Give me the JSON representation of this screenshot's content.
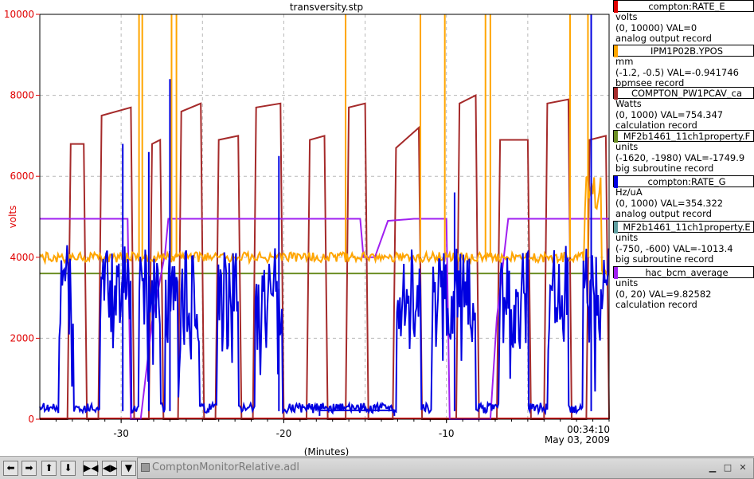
{
  "window": {
    "title": "transversity.stp",
    "taskbar_title": "ComptonMonitorRelative.adl"
  },
  "axes": {
    "y_label": "volts",
    "x_label": "(Minutes)",
    "time_label": "00:34:10",
    "date_label": "May 03, 2009",
    "y_ticks": [
      "0",
      "2000",
      "4000",
      "6000",
      "8000",
      "10000"
    ],
    "x_ticks": [
      "-30",
      "-20",
      "-10"
    ]
  },
  "legend": [
    {
      "name": "compton:RATE_E",
      "color": "#e00000",
      "units": "volts",
      "range": "(0, 10000)  VAL=0",
      "type": "analog output record"
    },
    {
      "name": "IPM1P02B.YPOS",
      "color": "#ffa500",
      "units": "mm",
      "range": "(-1.2, -0.5) VAL=-0.941746",
      "type": "bpmsee record"
    },
    {
      "name": "COMPTON_PW1PCAV_ca",
      "color": "#a52a2a",
      "units": "Watts",
      "range": "(0, 1000) VAL=754.347",
      "type": "calculation record"
    },
    {
      "name": "MF2b1461_11ch1property.F",
      "color": "#6b8e23",
      "units": "units",
      "range": "(-1620, -1980) VAL=-1749.9",
      "type": "big subroutine record"
    },
    {
      "name": "compton:RATE_G",
      "color": "#0000e0",
      "units": "Hz/uA",
      "range": "(0, 1000) VAL=354.322",
      "type": "analog output record"
    },
    {
      "name": "MF2b1461_11ch1property.E",
      "color": "#5f9ea0",
      "units": "units",
      "range": "(-750, -600) VAL=-1013.4",
      "type": "big subroutine record"
    },
    {
      "name": "hac_bcm_average",
      "color": "#a020f0",
      "units": "units",
      "range": "(0, 20) VAL=9.82582",
      "type": "calculation record"
    }
  ],
  "chart_data": {
    "type": "line",
    "title": "transversity.stp",
    "xlabel": "(Minutes)",
    "ylabel": "volts",
    "xlim": [
      -35,
      0
    ],
    "ylim": [
      0,
      10000
    ],
    "grid": true,
    "series": [
      {
        "name": "compton:RATE_E",
        "color": "#e00000",
        "x": [
          -35,
          0
        ],
        "y": [
          20,
          20
        ]
      },
      {
        "name": "MF2b1461_11ch1property.F",
        "color": "#6b8e23",
        "x": [
          -35,
          0
        ],
        "y": [
          3600,
          3600
        ]
      },
      {
        "name": "COMPTON_PW1PCAV_ca",
        "color": "#a52a2a",
        "x": [
          -35,
          -33.3,
          -33.1,
          -32.3,
          -32.1,
          -31.4,
          -31.2,
          -29.4,
          -29.2,
          -28.3,
          -28.1,
          -27.6,
          -27.4,
          -26.5,
          -26.3,
          -25.1,
          -24.9,
          -24.2,
          -24,
          -22.8,
          -22.6,
          -21.9,
          -21.7,
          -20.2,
          -20,
          -18.6,
          -18.4,
          -17.5,
          -17.3,
          -16.2,
          -16,
          -15,
          -14.8,
          -13.3,
          -13.1,
          -11.7,
          -11.5,
          -9.4,
          -9.2,
          -8.2,
          -8,
          -6.9,
          -6.7,
          -5,
          -4.8,
          -4,
          -3.8,
          -2.5,
          -2.3,
          -1.4,
          -1.2,
          -0.2,
          0
        ],
        "y": [
          0,
          0,
          6800,
          6800,
          0,
          0,
          7500,
          7700,
          0,
          0,
          6800,
          6900,
          0,
          0,
          7600,
          7800,
          0,
          0,
          6900,
          7000,
          0,
          0,
          7700,
          7800,
          0,
          0,
          6900,
          7000,
          0,
          0,
          7700,
          7800,
          0,
          0,
          6700,
          7200,
          0,
          0,
          7800,
          8000,
          0,
          0,
          6900,
          6900,
          0,
          0,
          7800,
          7900,
          0,
          0,
          6900,
          7000,
          0
        ]
      },
      {
        "name": "hac_bcm_average",
        "color": "#a020f0",
        "x": [
          -35,
          -29.6,
          -29.4,
          -28.8,
          -28.1,
          -27.3,
          -27.1,
          -25,
          -20,
          -15.3,
          -15.1,
          -14.4,
          -13.6,
          -12,
          -10.5,
          -10,
          -9.8,
          -7.5,
          -7.3,
          -6.9,
          -6.2,
          -3.5,
          -2,
          -1.2,
          0
        ],
        "y": [
          4950,
          4950,
          0,
          0,
          2400,
          4100,
          4950,
          4950,
          4950,
          4950,
          4000,
          4000,
          4900,
          4950,
          4950,
          4950,
          0,
          0,
          0,
          2500,
          4950,
          4950,
          4950,
          4950,
          4950
        ]
      }
    ]
  }
}
